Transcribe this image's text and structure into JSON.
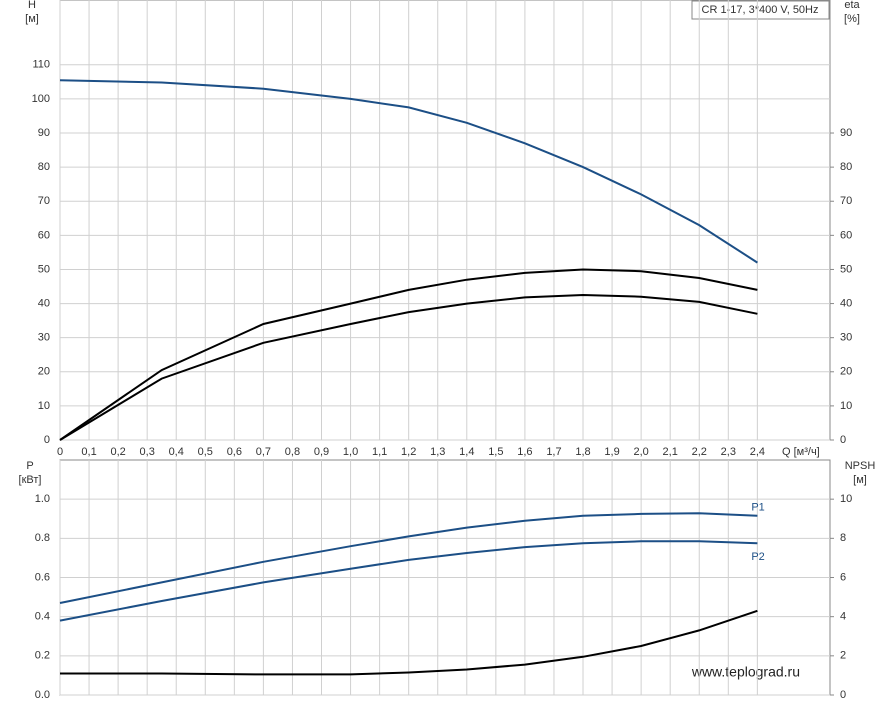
{
  "chart_data": [
    {
      "type": "line",
      "title": "CR 1-17, 3*400 V, 50Hz",
      "ylabel": "H",
      "yunit": "[м]",
      "y2label": "eta",
      "y2unit": "[%]",
      "xlabel": "Q [м³/ч]",
      "x": [
        0,
        0.35,
        0.7,
        1.0,
        1.2,
        1.4,
        1.6,
        1.8,
        2.0,
        2.2,
        2.4
      ],
      "xlim": [
        0,
        2.65
      ],
      "xticks": [
        0,
        {
          "value": 0.1,
          "label": "0,1"
        },
        {
          "value": 0.2,
          "label": "0,2"
        },
        {
          "value": 0.3,
          "label": "0,3"
        },
        {
          "value": 0.4,
          "label": "0,4"
        },
        {
          "value": 0.5,
          "label": "0,5"
        },
        {
          "value": 0.6,
          "label": "0,6"
        },
        {
          "value": 0.7,
          "label": "0,7"
        },
        {
          "value": 0.8,
          "label": "0,8"
        },
        {
          "value": 0.9,
          "label": "0,9"
        },
        {
          "value": 1,
          "label": "1,0"
        },
        {
          "value": 1.1,
          "label": "1,1"
        },
        {
          "value": 1.2,
          "label": "1,2"
        },
        {
          "value": 1.3,
          "label": "1,3"
        },
        {
          "value": 1.4,
          "label": "1,4"
        },
        {
          "value": 1.5,
          "label": "1,5"
        },
        {
          "value": 1.6,
          "label": "1,6"
        },
        {
          "value": 1.7,
          "label": "1,7"
        },
        {
          "value": 1.8,
          "label": "1,8"
        },
        {
          "value": 1.9,
          "label": "1,9"
        },
        {
          "value": 2,
          "label": "2,0"
        },
        {
          "value": 2.1,
          "label": "2,1"
        },
        {
          "value": 2.2,
          "label": "2,2"
        },
        {
          "value": 2.3,
          "label": "2,3"
        },
        {
          "value": 2.4,
          "label": "2,4"
        }
      ],
      "ylim": [
        0,
        129
      ],
      "yticks": [
        0,
        10,
        20,
        30,
        40,
        50,
        60,
        70,
        80,
        90,
        100,
        110
      ],
      "y2lim": [
        0,
        129
      ],
      "y2ticks": [
        0,
        10,
        20,
        30,
        40,
        50,
        60,
        70,
        80,
        90
      ],
      "grid": true,
      "series": [
        {
          "color": "#1c4f86",
          "values": [
            105.5,
            104.8,
            103,
            100,
            97.5,
            93,
            87,
            80,
            72,
            63,
            52
          ]
        },
        {
          "color": "#000000",
          "axis": "y2",
          "values": [
            0,
            20.5,
            34,
            40,
            44,
            47,
            49,
            50,
            49.5,
            47.5,
            44
          ]
        },
        {
          "color": "#000000",
          "axis": "y2",
          "values": [
            0,
            18,
            28.5,
            34,
            37.5,
            40,
            41.8,
            42.5,
            42,
            40.5,
            37
          ]
        }
      ]
    },
    {
      "type": "line",
      "ylabel": "P",
      "yunit": "[кВт]",
      "y2label": "NPSH",
      "y2unit": "[м]",
      "annotation": "www.teplograd.ru",
      "x": [
        0,
        0.35,
        0.7,
        1.0,
        1.2,
        1.4,
        1.6,
        1.8,
        2.0,
        2.2,
        2.4
      ],
      "xlim": [
        0,
        2.65
      ],
      "ylim": [
        0,
        1.2
      ],
      "yticks": [
        {
          "value": 0,
          "label": "0.0"
        },
        0.2,
        0.4,
        0.6,
        0.8,
        {
          "value": 1,
          "label": "1.0"
        }
      ],
      "y2lim": [
        0,
        12
      ],
      "y2ticks": [
        0,
        2,
        4,
        6,
        8,
        10
      ],
      "grid": true,
      "series": [
        {
          "name": "P1",
          "color": "#1c4f86",
          "values": [
            0.47,
            0.575,
            0.68,
            0.76,
            0.81,
            0.855,
            0.89,
            0.915,
            0.925,
            0.928,
            0.915
          ]
        },
        {
          "name": "P2",
          "color": "#1c4f86",
          "values": [
            0.38,
            0.48,
            0.575,
            0.645,
            0.69,
            0.725,
            0.755,
            0.775,
            0.785,
            0.785,
            0.775
          ]
        },
        {
          "color": "#000000",
          "axis": "y2",
          "values": [
            1.1,
            1.1,
            1.05,
            1.05,
            1.15,
            1.3,
            1.55,
            1.95,
            2.5,
            3.3,
            4.3
          ]
        }
      ]
    }
  ]
}
